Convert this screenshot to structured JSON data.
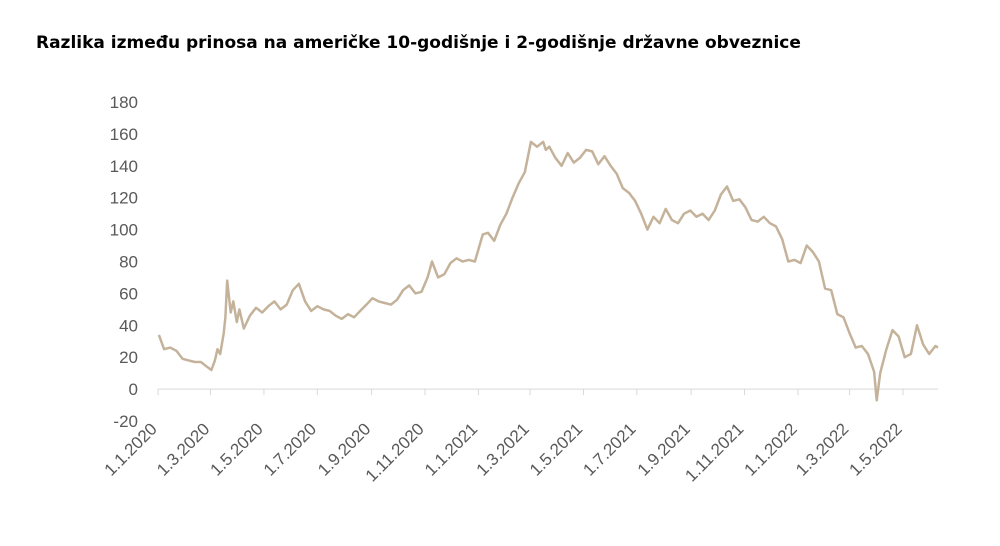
{
  "chart_data": {
    "type": "line",
    "title": "Razlika između prinosa na američke 10-godišnje i 2-godišnje državne obveznice",
    "xlabel": "",
    "ylabel": "",
    "ylim": [
      -20,
      180
    ],
    "yticks": [
      "180",
      "160",
      "140",
      "120",
      "100",
      "80",
      "60",
      "40",
      "20",
      "0",
      "-20"
    ],
    "xticks": [
      "1.1.2020",
      "1.3.2020",
      "1.5.2020",
      "1.7.2020",
      "1.9.2020",
      "1.11.2020",
      "1.1.2021",
      "1.3.2021",
      "1.5.2021",
      "1.7.2021",
      "1.9.2021",
      "1.11.2021",
      "1.1.2022",
      "1.3.2022",
      "1.5.2022"
    ],
    "grid": false,
    "legend": "none",
    "line_color": "#c4b39a",
    "series": [
      {
        "x": [
          "2020-01-02",
          "2020-01-08",
          "2020-01-15",
          "2020-01-22",
          "2020-01-29",
          "2020-02-05",
          "2020-02-12",
          "2020-02-19",
          "2020-02-26",
          "2020-03-02",
          "2020-03-06",
          "2020-03-09",
          "2020-03-12",
          "2020-03-16",
          "2020-03-18",
          "2020-03-20",
          "2020-03-24",
          "2020-03-27",
          "2020-03-31",
          "2020-04-03",
          "2020-04-08",
          "2020-04-15",
          "2020-04-22",
          "2020-04-29",
          "2020-05-06",
          "2020-05-13",
          "2020-05-20",
          "2020-05-27",
          "2020-06-03",
          "2020-06-10",
          "2020-06-17",
          "2020-06-24",
          "2020-07-01",
          "2020-07-08",
          "2020-07-15",
          "2020-07-22",
          "2020-07-29",
          "2020-08-05",
          "2020-08-12",
          "2020-08-19",
          "2020-08-26",
          "2020-09-02",
          "2020-09-09",
          "2020-09-16",
          "2020-09-23",
          "2020-09-30",
          "2020-10-07",
          "2020-10-14",
          "2020-10-21",
          "2020-10-28",
          "2020-11-04",
          "2020-11-09",
          "2020-11-16",
          "2020-11-23",
          "2020-11-30",
          "2020-12-07",
          "2020-12-14",
          "2020-12-21",
          "2020-12-28",
          "2021-01-06",
          "2021-01-12",
          "2021-01-19",
          "2021-01-26",
          "2021-02-02",
          "2021-02-09",
          "2021-02-16",
          "2021-02-23",
          "2021-03-02",
          "2021-03-09",
          "2021-03-16",
          "2021-03-19",
          "2021-03-23",
          "2021-03-30",
          "2021-04-06",
          "2021-04-13",
          "2021-04-20",
          "2021-04-27",
          "2021-05-04",
          "2021-05-11",
          "2021-05-18",
          "2021-05-25",
          "2021-06-01",
          "2021-06-08",
          "2021-06-15",
          "2021-06-22",
          "2021-06-29",
          "2021-07-06",
          "2021-07-13",
          "2021-07-20",
          "2021-07-27",
          "2021-08-03",
          "2021-08-10",
          "2021-08-17",
          "2021-08-24",
          "2021-08-31",
          "2021-09-07",
          "2021-09-14",
          "2021-09-21",
          "2021-09-28",
          "2021-10-05",
          "2021-10-12",
          "2021-10-19",
          "2021-10-26",
          "2021-11-02",
          "2021-11-09",
          "2021-11-16",
          "2021-11-23",
          "2021-11-30",
          "2021-12-07",
          "2021-12-14",
          "2021-12-21",
          "2021-12-28",
          "2022-01-04",
          "2022-01-11",
          "2022-01-18",
          "2022-01-25",
          "2022-02-01",
          "2022-02-08",
          "2022-02-15",
          "2022-02-22",
          "2022-03-01",
          "2022-03-08",
          "2022-03-15",
          "2022-03-22",
          "2022-03-29",
          "2022-04-01",
          "2022-04-05",
          "2022-04-12",
          "2022-04-19",
          "2022-04-26",
          "2022-05-03",
          "2022-05-10",
          "2022-05-17",
          "2022-05-24",
          "2022-05-31",
          "2022-06-07",
          "2022-06-10"
        ],
        "y": [
          34,
          25,
          26,
          24,
          19,
          18,
          17,
          17,
          14,
          12,
          18,
          25,
          22,
          35,
          45,
          68,
          48,
          55,
          42,
          50,
          38,
          46,
          51,
          48,
          52,
          55,
          50,
          53,
          62,
          66,
          55,
          49,
          52,
          50,
          49,
          46,
          44,
          47,
          45,
          49,
          53,
          57,
          55,
          54,
          53,
          56,
          62,
          65,
          60,
          61,
          70,
          80,
          70,
          72,
          79,
          82,
          80,
          81,
          80,
          97,
          98,
          93,
          103,
          110,
          120,
          129,
          136,
          155,
          152,
          155,
          150,
          152,
          145,
          140,
          148,
          142,
          145,
          150,
          149,
          141,
          146,
          140,
          135,
          126,
          123,
          118,
          110,
          100,
          108,
          104,
          113,
          106,
          104,
          110,
          112,
          108,
          110,
          106,
          112,
          122,
          127,
          118,
          119,
          114,
          106,
          105,
          108,
          104,
          102,
          94,
          80,
          81,
          79,
          90,
          86,
          80,
          63,
          62,
          47,
          45,
          35,
          26,
          27,
          22,
          11,
          -7,
          10,
          25,
          37,
          33,
          20,
          22,
          40,
          28,
          22,
          27,
          26
        ]
      }
    ]
  }
}
